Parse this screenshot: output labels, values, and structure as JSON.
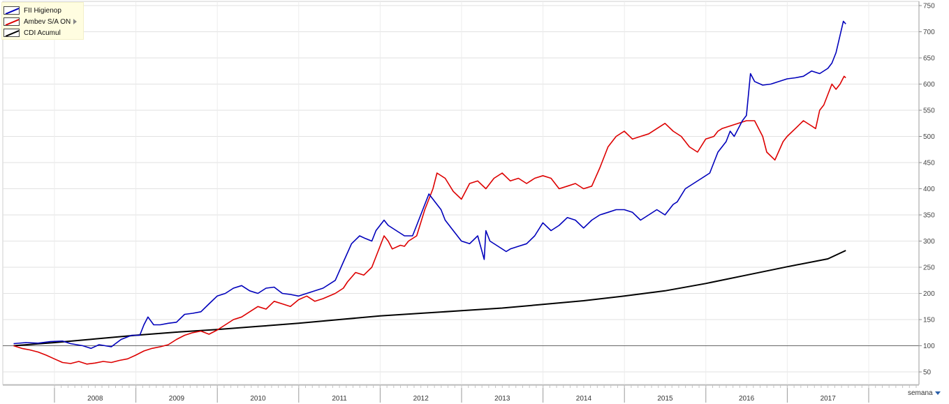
{
  "chart_data": {
    "type": "line",
    "title": "",
    "xlabel": "",
    "ylabel": "",
    "ylim": [
      30,
      750
    ],
    "y_ticks": [
      50,
      100,
      150,
      200,
      250,
      300,
      350,
      400,
      450,
      500,
      550,
      600,
      650,
      700,
      750
    ],
    "x_tick_labels": [
      "2008",
      "2009",
      "2010",
      "2011",
      "2012",
      "2013",
      "2014",
      "2015",
      "2016",
      "2017"
    ],
    "xlim": [
      2007.5,
      2018.0
    ],
    "baseline": 100,
    "grid": true,
    "legend_position": "top-left",
    "series": [
      {
        "name": "FII Higienop",
        "color": "#0000bb",
        "x": [
          2007.5,
          2007.65,
          2007.8,
          2007.95,
          2008.1,
          2008.2,
          2008.35,
          2008.45,
          2008.55,
          2008.7,
          2008.82,
          2008.95,
          2009.05,
          2009.1,
          2009.15,
          2009.22,
          2009.3,
          2009.4,
          2009.5,
          2009.6,
          2009.7,
          2009.8,
          2009.9,
          2010.0,
          2010.1,
          2010.2,
          2010.3,
          2010.4,
          2010.5,
          2010.6,
          2010.7,
          2010.8,
          2010.9,
          2011.0,
          2011.1,
          2011.2,
          2011.3,
          2011.45,
          2011.55,
          2011.65,
          2011.75,
          2011.82,
          2011.9,
          2011.95,
          2012.05,
          2012.1,
          2012.2,
          2012.3,
          2012.4,
          2012.45,
          2012.5,
          2012.6,
          2012.7,
          2012.75,
          2012.8,
          2012.9,
          2013.0,
          2013.1,
          2013.2,
          2013.28,
          2013.3,
          2013.35,
          2013.45,
          2013.55,
          2013.6,
          2013.7,
          2013.8,
          2013.9,
          2014.0,
          2014.1,
          2014.2,
          2014.3,
          2014.4,
          2014.5,
          2014.6,
          2014.7,
          2014.8,
          2014.9,
          2015.0,
          2015.1,
          2015.2,
          2015.3,
          2015.4,
          2015.5,
          2015.6,
          2015.65,
          2015.75,
          2015.85,
          2015.95,
          2016.05,
          2016.15,
          2016.25,
          2016.3,
          2016.35,
          2016.45,
          2016.5,
          2016.55,
          2016.6,
          2016.7,
          2016.8,
          2016.9,
          2017.0,
          2017.1,
          2017.2,
          2017.3,
          2017.4,
          2017.5,
          2017.55,
          2017.6,
          2017.63,
          2017.66,
          2017.69,
          2017.72
        ],
        "y": [
          104,
          106,
          105,
          108,
          109,
          104,
          100,
          95,
          102,
          98,
          112,
          120,
          120,
          140,
          155,
          140,
          140,
          143,
          145,
          160,
          162,
          165,
          180,
          195,
          200,
          210,
          215,
          205,
          200,
          210,
          212,
          200,
          198,
          195,
          200,
          205,
          210,
          225,
          260,
          295,
          310,
          305,
          300,
          320,
          340,
          330,
          320,
          310,
          310,
          330,
          350,
          390,
          370,
          360,
          340,
          320,
          300,
          295,
          310,
          265,
          320,
          300,
          290,
          280,
          285,
          290,
          295,
          310,
          335,
          320,
          330,
          345,
          340,
          325,
          340,
          350,
          355,
          360,
          360,
          355,
          340,
          350,
          360,
          350,
          370,
          375,
          400,
          410,
          420,
          430,
          470,
          490,
          510,
          500,
          530,
          540,
          620,
          605,
          598,
          600,
          605,
          610,
          612,
          615,
          625,
          620,
          630,
          640,
          660,
          680,
          700,
          720,
          715
        ]
      },
      {
        "name": "Ambev S/A ON",
        "color": "#dd0000",
        "x": [
          2007.5,
          2007.6,
          2007.7,
          2007.8,
          2007.9,
          2008.0,
          2008.1,
          2008.2,
          2008.3,
          2008.4,
          2008.5,
          2008.6,
          2008.7,
          2008.8,
          2008.9,
          2009.0,
          2009.1,
          2009.2,
          2009.3,
          2009.4,
          2009.5,
          2009.6,
          2009.7,
          2009.8,
          2009.9,
          2010.0,
          2010.1,
          2010.2,
          2010.3,
          2010.4,
          2010.5,
          2010.6,
          2010.7,
          2010.8,
          2010.9,
          2011.0,
          2011.1,
          2011.2,
          2011.3,
          2011.45,
          2011.55,
          2011.6,
          2011.7,
          2011.8,
          2011.9,
          2012.0,
          2012.05,
          2012.1,
          2012.15,
          2012.25,
          2012.3,
          2012.35,
          2012.45,
          2012.55,
          2012.65,
          2012.7,
          2012.8,
          2012.9,
          2013.0,
          2013.1,
          2013.2,
          2013.3,
          2013.4,
          2013.5,
          2013.6,
          2013.7,
          2013.8,
          2013.9,
          2014.0,
          2014.1,
          2014.2,
          2014.3,
          2014.4,
          2014.5,
          2014.6,
          2014.7,
          2014.8,
          2014.9,
          2015.0,
          2015.1,
          2015.2,
          2015.3,
          2015.4,
          2015.5,
          2015.6,
          2015.7,
          2015.8,
          2015.9,
          2016.0,
          2016.1,
          2016.15,
          2016.2,
          2016.3,
          2016.4,
          2016.5,
          2016.6,
          2016.7,
          2016.75,
          2016.85,
          2016.95,
          2017.0,
          2017.1,
          2017.2,
          2017.3,
          2017.35,
          2017.4,
          2017.45,
          2017.5,
          2017.55,
          2017.6,
          2017.65,
          2017.7,
          2017.72
        ],
        "y": [
          100,
          95,
          92,
          88,
          82,
          75,
          68,
          66,
          70,
          65,
          67,
          70,
          68,
          72,
          75,
          82,
          90,
          95,
          98,
          102,
          112,
          120,
          125,
          128,
          122,
          130,
          140,
          150,
          155,
          165,
          175,
          170,
          185,
          180,
          175,
          188,
          195,
          185,
          190,
          200,
          210,
          222,
          240,
          235,
          250,
          290,
          310,
          300,
          285,
          292,
          290,
          300,
          310,
          360,
          400,
          430,
          420,
          395,
          380,
          410,
          415,
          400,
          420,
          430,
          415,
          420,
          410,
          420,
          425,
          420,
          400,
          405,
          410,
          400,
          405,
          440,
          480,
          500,
          510,
          495,
          500,
          505,
          515,
          525,
          510,
          500,
          480,
          470,
          495,
          500,
          510,
          515,
          520,
          525,
          530,
          530,
          500,
          470,
          455,
          490,
          500,
          515,
          530,
          520,
          515,
          550,
          560,
          580,
          600,
          590,
          600,
          615,
          612
        ]
      },
      {
        "name": "CDI Acumul",
        "color": "#000000",
        "x": [
          2007.5,
          2008.0,
          2008.5,
          2009.0,
          2009.5,
          2010.0,
          2010.5,
          2011.0,
          2011.5,
          2012.0,
          2012.5,
          2013.0,
          2013.5,
          2014.0,
          2014.5,
          2015.0,
          2015.5,
          2016.0,
          2016.5,
          2017.0,
          2017.5,
          2017.72
        ],
        "y": [
          100,
          106,
          113,
          120,
          126,
          131,
          137,
          143,
          150,
          157,
          162,
          167,
          172,
          179,
          186,
          195,
          205,
          219,
          235,
          251,
          266,
          282
        ]
      }
    ]
  },
  "legend": {
    "items": [
      {
        "label": "FII Higienop",
        "color": "#0000bb"
      },
      {
        "label": "Ambev S/A ON",
        "color": "#dd0000"
      },
      {
        "label": "CDI Acumul",
        "color": "#000000"
      }
    ]
  },
  "frequency_selector": {
    "value": "semana"
  }
}
